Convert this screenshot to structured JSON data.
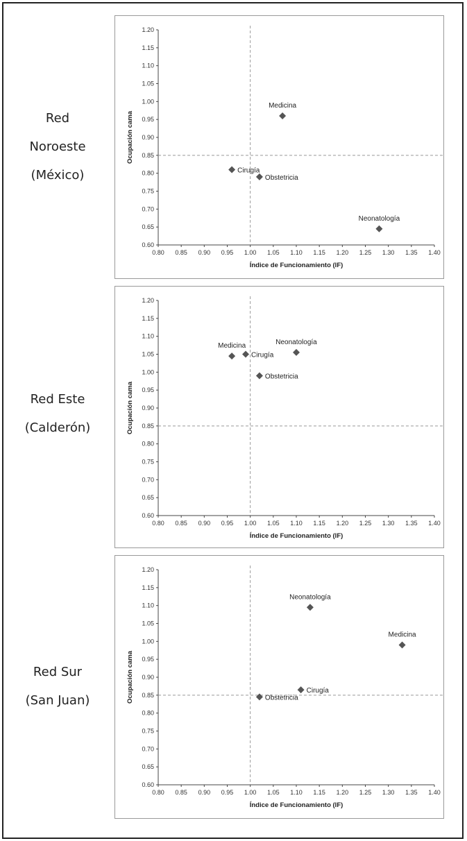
{
  "rows": [
    {
      "label_lines": [
        "Red",
        "Noroeste",
        "(México)"
      ]
    },
    {
      "label_lines": [
        "Red Este",
        "(Calderón)"
      ]
    },
    {
      "label_lines": [
        "Red Sur",
        "(San Juan)"
      ]
    }
  ],
  "colors": {
    "marker": "#555555",
    "reference_line": "#999999",
    "axis": "#444444"
  },
  "chart_data": [
    {
      "type": "scatter",
      "xlabel": "Índice de Funcionamiento (IF)",
      "ylabel": "Ocupación cama",
      "xlim": [
        0.8,
        1.4
      ],
      "ylim": [
        0.6,
        1.2
      ],
      "x_ticks": [
        "0.80",
        "0.85",
        "0.90",
        "0.95",
        "1.00",
        "1.05",
        "1.10",
        "1.15",
        "1.20",
        "1.25",
        "1.30",
        "1.35",
        "1.40"
      ],
      "y_ticks": [
        "0.60",
        "0.65",
        "0.70",
        "0.75",
        "0.80",
        "0.85",
        "0.90",
        "0.95",
        "1.00",
        "1.05",
        "1.10",
        "1.15",
        "1.20"
      ],
      "reference_lines": {
        "x": 1.0,
        "y": 0.85,
        "style": "dashed"
      },
      "points": [
        {
          "name": "Medicina",
          "x": 1.07,
          "y": 0.96,
          "label_pos": "above"
        },
        {
          "name": "Cirugía",
          "x": 0.96,
          "y": 0.81,
          "label_pos": "right"
        },
        {
          "name": "Obstetricia",
          "x": 1.02,
          "y": 0.79,
          "label_pos": "right"
        },
        {
          "name": "Neonatología",
          "x": 1.28,
          "y": 0.645,
          "label_pos": "above"
        }
      ]
    },
    {
      "type": "scatter",
      "xlabel": "Índice de Funcionamiento (IF)",
      "ylabel": "Ocupación cama",
      "xlim": [
        0.8,
        1.4
      ],
      "ylim": [
        0.6,
        1.2
      ],
      "x_ticks": [
        "0.80",
        "0.85",
        "0.90",
        "0.95",
        "1.00",
        "1.05",
        "1.10",
        "1.15",
        "1.20",
        "1.25",
        "1.30",
        "1.35",
        "1.40"
      ],
      "y_ticks": [
        "0.60",
        "0.65",
        "0.70",
        "0.75",
        "0.80",
        "0.85",
        "0.90",
        "0.95",
        "1.00",
        "1.05",
        "1.10",
        "1.15",
        "1.20"
      ],
      "reference_lines": {
        "x": 1.0,
        "y": 0.85,
        "style": "dashed"
      },
      "points": [
        {
          "name": "Medicina",
          "x": 0.96,
          "y": 1.045,
          "label_pos": "above"
        },
        {
          "name": "Cirugía",
          "x": 0.99,
          "y": 1.05,
          "label_pos": "right"
        },
        {
          "name": "Neonatología",
          "x": 1.1,
          "y": 1.055,
          "label_pos": "above"
        },
        {
          "name": "Obstetricia",
          "x": 1.02,
          "y": 0.99,
          "label_pos": "right"
        }
      ]
    },
    {
      "type": "scatter",
      "xlabel": "Índice de Funcionamiento (IF)",
      "ylabel": "Ocupación cama",
      "xlim": [
        0.8,
        1.4
      ],
      "ylim": [
        0.6,
        1.2
      ],
      "x_ticks": [
        "0.80",
        "0.85",
        "0.90",
        "0.95",
        "1.00",
        "1.05",
        "1.10",
        "1.15",
        "1.20",
        "1.25",
        "1.30",
        "1.35",
        "1.40"
      ],
      "y_ticks": [
        "0.60",
        "0.65",
        "0.70",
        "0.75",
        "0.80",
        "0.85",
        "0.90",
        "0.95",
        "1.00",
        "1.05",
        "1.10",
        "1.15",
        "1.20"
      ],
      "reference_lines": {
        "x": 1.0,
        "y": 0.85,
        "style": "dashed"
      },
      "points": [
        {
          "name": "Neonatología",
          "x": 1.13,
          "y": 1.095,
          "label_pos": "above"
        },
        {
          "name": "Medicina",
          "x": 1.33,
          "y": 0.99,
          "label_pos": "above"
        },
        {
          "name": "Cirugía",
          "x": 1.11,
          "y": 0.865,
          "label_pos": "right"
        },
        {
          "name": "Obstetricia",
          "x": 1.02,
          "y": 0.845,
          "label_pos": "right"
        }
      ]
    }
  ]
}
